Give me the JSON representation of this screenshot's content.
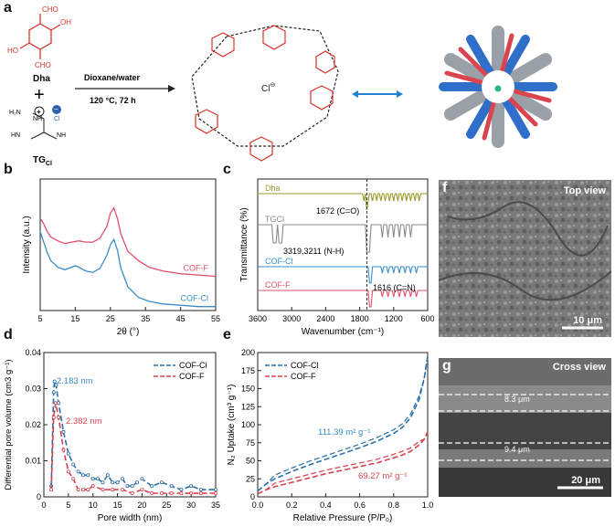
{
  "panel_labels": {
    "a": "a",
    "b": "b",
    "c": "c",
    "d": "d",
    "e": "e",
    "f": "f",
    "g": "g"
  },
  "scheme": {
    "dha_label": "Dha",
    "plus": "+",
    "tg_label": "TG",
    "tg_sub": "Cl",
    "arrow_line1": "Dioxane/water",
    "arrow_line2": "120 °C, 72 h",
    "counter_ion": "Cl",
    "cho_top": "CHO",
    "cho_bottom": "CHO",
    "oh_left": "HO",
    "oh_right": "OH",
    "colors": {
      "red": "#d9332b",
      "blue": "#1f7fd1",
      "black": "#222222"
    }
  },
  "chart_data": [
    {
      "id": "b",
      "type": "line",
      "xlabel": "2θ (°)",
      "ylabel": "Intensity (a.u.)",
      "xlim": [
        5,
        55
      ],
      "xticks": [
        5,
        15,
        25,
        35,
        45,
        55
      ],
      "series": [
        {
          "name": "COF-F",
          "color": "#e0506a",
          "x": [
            5,
            6,
            7,
            8,
            10,
            12,
            14,
            16,
            18,
            20,
            22,
            24,
            25,
            26,
            27,
            28,
            30,
            33,
            36,
            40,
            45,
            50,
            55
          ],
          "y": [
            0.7,
            0.66,
            0.6,
            0.56,
            0.53,
            0.51,
            0.52,
            0.53,
            0.52,
            0.52,
            0.55,
            0.64,
            0.74,
            0.78,
            0.7,
            0.58,
            0.45,
            0.38,
            0.33,
            0.3,
            0.28,
            0.27,
            0.26
          ]
        },
        {
          "name": "COF-Cl",
          "color": "#3a8fc8",
          "x": [
            5,
            6,
            7,
            8,
            10,
            12,
            14,
            15,
            16,
            18,
            20,
            22,
            24,
            25,
            26,
            27,
            28,
            30,
            33,
            36,
            40,
            45,
            50,
            55
          ],
          "y": [
            0.6,
            0.52,
            0.44,
            0.38,
            0.33,
            0.31,
            0.33,
            0.34,
            0.33,
            0.3,
            0.29,
            0.32,
            0.42,
            0.5,
            0.54,
            0.46,
            0.32,
            0.18,
            0.1,
            0.07,
            0.05,
            0.04,
            0.03,
            0.03
          ]
        }
      ]
    },
    {
      "id": "c",
      "type": "line",
      "xlabel": "Wavenumber (cm⁻¹)",
      "ylabel": "Transmittance (%)",
      "xlim": [
        3600,
        600
      ],
      "xticks": [
        3600,
        3000,
        2400,
        1800,
        1200,
        600
      ],
      "annotations": [
        "1672 (C=O)",
        "3319,3211 (N-H)",
        "1616 (C=N)"
      ],
      "series": [
        {
          "name": "Dha",
          "color": "#9a9a2a"
        },
        {
          "name": "TGCl",
          "color": "#8a8a8a"
        },
        {
          "name": "COF-Cl",
          "color": "#3a8fc8"
        },
        {
          "name": "COF-F",
          "color": "#e0506a"
        }
      ]
    },
    {
      "id": "d",
      "type": "line",
      "xlabel": "Pore width (nm)",
      "ylabel": "Differential pore volume (cm3 g⁻¹)",
      "xlim": [
        0,
        35
      ],
      "ylim": [
        0,
        0.04
      ],
      "xticks": [
        0,
        5,
        10,
        15,
        20,
        25,
        30,
        35
      ],
      "yticks": [
        0,
        0.01,
        0.02,
        0.03,
        0.04
      ],
      "annotations": [
        "2.183 nm",
        "2.382 nm"
      ],
      "series": [
        {
          "name": "COF-Cl",
          "color": "#2a6fa8",
          "x": [
            1.5,
            2,
            2.183,
            2.5,
            3,
            4,
            5,
            6,
            7,
            8,
            9,
            10,
            11,
            12,
            13,
            14,
            15,
            16,
            17,
            18,
            19,
            20,
            22,
            24,
            26,
            28,
            30,
            32,
            35
          ],
          "y": [
            0.003,
            0.029,
            0.032,
            0.031,
            0.026,
            0.018,
            0.012,
            0.009,
            0.007,
            0.006,
            0.006,
            0.005,
            0.005,
            0.004,
            0.006,
            0.004,
            0.004,
            0.005,
            0.003,
            0.003,
            0.004,
            0.005,
            0.003,
            0.004,
            0.003,
            0.002,
            0.003,
            0.002,
            0.002
          ]
        },
        {
          "name": "COF-F",
          "color": "#d9404f",
          "x": [
            1.5,
            2,
            2.382,
            3,
            4,
            5,
            6,
            7,
            8,
            9,
            10,
            12,
            14,
            16,
            18,
            20,
            22,
            24,
            26,
            28,
            30,
            32,
            35
          ],
          "y": [
            0.002,
            0.022,
            0.026,
            0.022,
            0.013,
            0.007,
            0.005,
            0.002,
            0.002,
            0.002,
            0.003,
            0.002,
            0.002,
            0.002,
            0.001,
            0.002,
            0.001,
            0.001,
            0.001,
            0.001,
            0.001,
            0.001,
            0.001
          ]
        }
      ]
    },
    {
      "id": "e",
      "type": "line",
      "xlabel": "Relative Pressure (P/P₀)",
      "ylabel": "N₂ Uptake (cm³ g⁻¹)",
      "xlim": [
        0,
        1.0
      ],
      "ylim": [
        0,
        200
      ],
      "xticks": [
        0.0,
        0.2,
        0.4,
        0.6,
        0.8,
        1.0
      ],
      "yticks": [
        0,
        25,
        50,
        75,
        100,
        125,
        150,
        175,
        200
      ],
      "annotations": [
        "111.39 m² g⁻¹",
        "69.27 m² g⁻¹"
      ],
      "series": [
        {
          "name": "COF-Cl",
          "color": "#2a6fa8",
          "x": [
            0,
            0.05,
            0.1,
            0.2,
            0.3,
            0.4,
            0.5,
            0.6,
            0.7,
            0.8,
            0.85,
            0.9,
            0.95,
            0.98,
            1.0
          ],
          "y": [
            8,
            18,
            25,
            35,
            44,
            52,
            60,
            68,
            77,
            88,
            96,
            110,
            135,
            165,
            195
          ]
        },
        {
          "name": "COF-F",
          "color": "#d9404f",
          "x": [
            0,
            0.05,
            0.1,
            0.2,
            0.3,
            0.4,
            0.5,
            0.6,
            0.7,
            0.8,
            0.85,
            0.9,
            0.95,
            0.98,
            1.0
          ],
          "y": [
            4,
            10,
            14,
            20,
            26,
            32,
            37,
            42,
            47,
            54,
            58,
            63,
            72,
            80,
            90
          ]
        }
      ]
    }
  ],
  "sem_top": {
    "title": "Top view",
    "scale": "10 μm"
  },
  "sem_cross": {
    "title": "Cross view",
    "scale": "20 μm",
    "thickness1": "8.3 μm",
    "thickness2": "9.4 μm"
  }
}
